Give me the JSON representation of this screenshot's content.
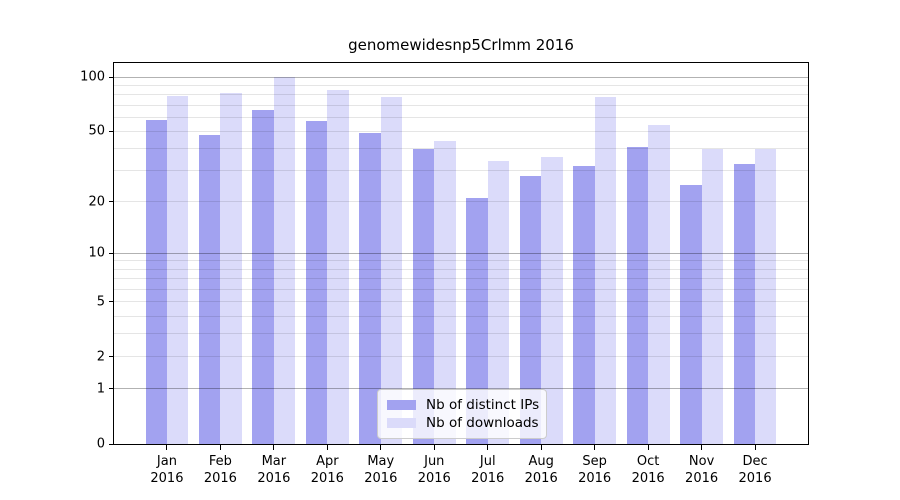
{
  "title": "genomewidesnp5Crlmm 2016",
  "chart_data": {
    "type": "bar",
    "title": "genomewidesnp5Crlmm 2016",
    "categories": [
      "Jan",
      "Feb",
      "Mar",
      "Apr",
      "May",
      "Jun",
      "Jul",
      "Aug",
      "Sep",
      "Oct",
      "Nov",
      "Dec"
    ],
    "year_label": "2016",
    "series": [
      {
        "name": "Nb of distinct IPs",
        "color": "#a2a2f0",
        "values": [
          58,
          48,
          66,
          57,
          49,
          40,
          21,
          28,
          32,
          41,
          25,
          33
        ]
      },
      {
        "name": "Nb of downloads",
        "color": "#dbdbfa",
        "values": [
          79,
          82,
          100,
          85,
          78,
          44,
          34,
          36,
          78,
          54,
          40,
          40
        ]
      }
    ],
    "xlabel": "",
    "ylabel": "",
    "y_scale": "log10(1+x)",
    "y_ticks": [
      0,
      1,
      2,
      5,
      10,
      20,
      50,
      100
    ],
    "y_major_grid": [
      1,
      10,
      100
    ],
    "y_minor_grid": [
      2,
      3,
      4,
      5,
      6,
      7,
      8,
      9,
      20,
      30,
      40,
      50,
      60,
      70,
      80,
      90
    ],
    "ylim": [
      0,
      123
    ],
    "grid": true,
    "legend_position": "lower center"
  },
  "colors": {
    "bar_dark": "#a2a2f0",
    "bar_light": "#dbdbfa",
    "spine": "#000000",
    "legend_border": "#cccccc"
  }
}
